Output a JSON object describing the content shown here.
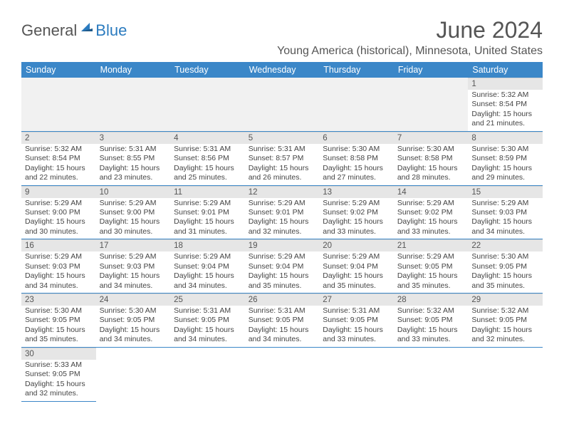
{
  "logo": {
    "general": "General",
    "blue": "Blue",
    "icon_color": "#2b7bbf"
  },
  "title": "June 2024",
  "location": "Young America (historical), Minnesota, United States",
  "colors": {
    "header_bg": "#3b87c8",
    "header_fg": "#ffffff",
    "daynum_bg": "#e6e6e6",
    "cell_border": "#3b87c8",
    "text": "#444444"
  },
  "weekdays": [
    "Sunday",
    "Monday",
    "Tuesday",
    "Wednesday",
    "Thursday",
    "Friday",
    "Saturday"
  ],
  "weeks": [
    [
      null,
      null,
      null,
      null,
      null,
      null,
      {
        "n": "1",
        "sunrise": "5:32 AM",
        "sunset": "8:54 PM",
        "dl1": "15 hours",
        "dl2": "and 21 minutes."
      }
    ],
    [
      {
        "n": "2",
        "sunrise": "5:32 AM",
        "sunset": "8:54 PM",
        "dl1": "15 hours",
        "dl2": "and 22 minutes."
      },
      {
        "n": "3",
        "sunrise": "5:31 AM",
        "sunset": "8:55 PM",
        "dl1": "15 hours",
        "dl2": "and 23 minutes."
      },
      {
        "n": "4",
        "sunrise": "5:31 AM",
        "sunset": "8:56 PM",
        "dl1": "15 hours",
        "dl2": "and 25 minutes."
      },
      {
        "n": "5",
        "sunrise": "5:31 AM",
        "sunset": "8:57 PM",
        "dl1": "15 hours",
        "dl2": "and 26 minutes."
      },
      {
        "n": "6",
        "sunrise": "5:30 AM",
        "sunset": "8:58 PM",
        "dl1": "15 hours",
        "dl2": "and 27 minutes."
      },
      {
        "n": "7",
        "sunrise": "5:30 AM",
        "sunset": "8:58 PM",
        "dl1": "15 hours",
        "dl2": "and 28 minutes."
      },
      {
        "n": "8",
        "sunrise": "5:30 AM",
        "sunset": "8:59 PM",
        "dl1": "15 hours",
        "dl2": "and 29 minutes."
      }
    ],
    [
      {
        "n": "9",
        "sunrise": "5:29 AM",
        "sunset": "9:00 PM",
        "dl1": "15 hours",
        "dl2": "and 30 minutes."
      },
      {
        "n": "10",
        "sunrise": "5:29 AM",
        "sunset": "9:00 PM",
        "dl1": "15 hours",
        "dl2": "and 30 minutes."
      },
      {
        "n": "11",
        "sunrise": "5:29 AM",
        "sunset": "9:01 PM",
        "dl1": "15 hours",
        "dl2": "and 31 minutes."
      },
      {
        "n": "12",
        "sunrise": "5:29 AM",
        "sunset": "9:01 PM",
        "dl1": "15 hours",
        "dl2": "and 32 minutes."
      },
      {
        "n": "13",
        "sunrise": "5:29 AM",
        "sunset": "9:02 PM",
        "dl1": "15 hours",
        "dl2": "and 33 minutes."
      },
      {
        "n": "14",
        "sunrise": "5:29 AM",
        "sunset": "9:02 PM",
        "dl1": "15 hours",
        "dl2": "and 33 minutes."
      },
      {
        "n": "15",
        "sunrise": "5:29 AM",
        "sunset": "9:03 PM",
        "dl1": "15 hours",
        "dl2": "and 34 minutes."
      }
    ],
    [
      {
        "n": "16",
        "sunrise": "5:29 AM",
        "sunset": "9:03 PM",
        "dl1": "15 hours",
        "dl2": "and 34 minutes."
      },
      {
        "n": "17",
        "sunrise": "5:29 AM",
        "sunset": "9:03 PM",
        "dl1": "15 hours",
        "dl2": "and 34 minutes."
      },
      {
        "n": "18",
        "sunrise": "5:29 AM",
        "sunset": "9:04 PM",
        "dl1": "15 hours",
        "dl2": "and 34 minutes."
      },
      {
        "n": "19",
        "sunrise": "5:29 AM",
        "sunset": "9:04 PM",
        "dl1": "15 hours",
        "dl2": "and 35 minutes."
      },
      {
        "n": "20",
        "sunrise": "5:29 AM",
        "sunset": "9:04 PM",
        "dl1": "15 hours",
        "dl2": "and 35 minutes."
      },
      {
        "n": "21",
        "sunrise": "5:29 AM",
        "sunset": "9:05 PM",
        "dl1": "15 hours",
        "dl2": "and 35 minutes."
      },
      {
        "n": "22",
        "sunrise": "5:30 AM",
        "sunset": "9:05 PM",
        "dl1": "15 hours",
        "dl2": "and 35 minutes."
      }
    ],
    [
      {
        "n": "23",
        "sunrise": "5:30 AM",
        "sunset": "9:05 PM",
        "dl1": "15 hours",
        "dl2": "and 35 minutes."
      },
      {
        "n": "24",
        "sunrise": "5:30 AM",
        "sunset": "9:05 PM",
        "dl1": "15 hours",
        "dl2": "and 34 minutes."
      },
      {
        "n": "25",
        "sunrise": "5:31 AM",
        "sunset": "9:05 PM",
        "dl1": "15 hours",
        "dl2": "and 34 minutes."
      },
      {
        "n": "26",
        "sunrise": "5:31 AM",
        "sunset": "9:05 PM",
        "dl1": "15 hours",
        "dl2": "and 34 minutes."
      },
      {
        "n": "27",
        "sunrise": "5:31 AM",
        "sunset": "9:05 PM",
        "dl1": "15 hours",
        "dl2": "and 33 minutes."
      },
      {
        "n": "28",
        "sunrise": "5:32 AM",
        "sunset": "9:05 PM",
        "dl1": "15 hours",
        "dl2": "and 33 minutes."
      },
      {
        "n": "29",
        "sunrise": "5:32 AM",
        "sunset": "9:05 PM",
        "dl1": "15 hours",
        "dl2": "and 32 minutes."
      }
    ],
    [
      {
        "n": "30",
        "sunrise": "5:33 AM",
        "sunset": "9:05 PM",
        "dl1": "15 hours",
        "dl2": "and 32 minutes."
      },
      null,
      null,
      null,
      null,
      null,
      null
    ]
  ],
  "labels": {
    "sunrise": "Sunrise: ",
    "sunset": "Sunset: ",
    "daylight": "Daylight: "
  }
}
